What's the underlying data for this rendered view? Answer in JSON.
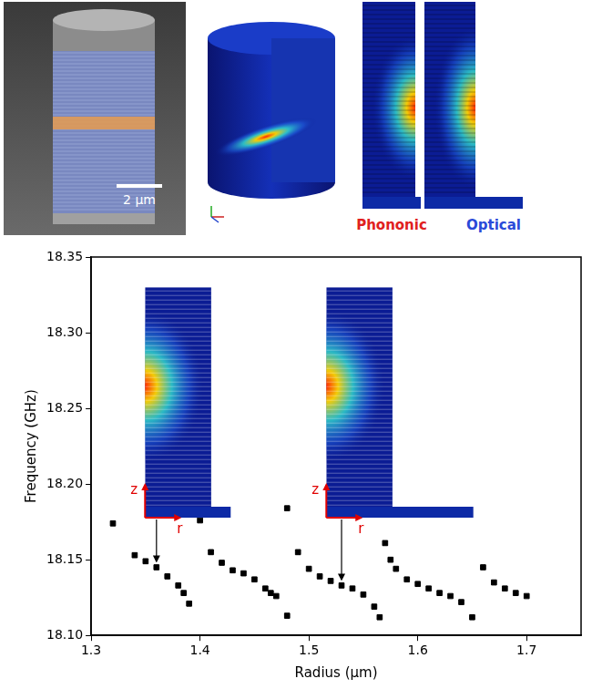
{
  "chart_data": {
    "type": "scatter",
    "x_label": "Radius (μm)",
    "y_label": "Frequency (GHz)",
    "x": [
      1.32,
      1.34,
      1.35,
      1.36,
      1.37,
      1.38,
      1.385,
      1.39,
      1.4,
      1.41,
      1.42,
      1.43,
      1.44,
      1.45,
      1.46,
      1.465,
      1.47,
      1.48,
      1.48,
      1.49,
      1.5,
      1.51,
      1.52,
      1.53,
      1.54,
      1.55,
      1.56,
      1.565,
      1.57,
      1.575,
      1.58,
      1.59,
      1.6,
      1.61,
      1.62,
      1.63,
      1.64,
      1.65,
      1.66,
      1.67,
      1.68,
      1.69,
      1.7
    ],
    "values": [
      18.174,
      18.153,
      18.149,
      18.145,
      18.139,
      18.133,
      18.128,
      18.121,
      18.176,
      18.155,
      18.148,
      18.143,
      18.141,
      18.137,
      18.131,
      18.128,
      18.126,
      18.184,
      18.113,
      18.155,
      18.144,
      18.139,
      18.136,
      18.133,
      18.131,
      18.127,
      18.119,
      18.112,
      18.161,
      18.15,
      18.144,
      18.137,
      18.134,
      18.131,
      18.128,
      18.126,
      18.122,
      18.112,
      18.145,
      18.135,
      18.131,
      18.128,
      18.126
    ],
    "color": "#000000",
    "marker": "square",
    "grid": false,
    "xlim": [
      1.3,
      1.75
    ],
    "xticks": [
      1.3,
      1.4,
      1.5,
      1.6,
      1.7
    ],
    "ylim": [
      18.1,
      18.35
    ],
    "yticks": [
      {
        "value": 18.1,
        "label": "18.10"
      },
      18.15,
      {
        "value": 18.2,
        "label": "18.20"
      },
      18.25,
      {
        "value": 18.3,
        "label": "18.30"
      },
      18.35
    ],
    "annotations": [
      {
        "axis_labels": [
          "z",
          "r"
        ],
        "x": 1.36,
        "y": 18.145
      },
      {
        "axis_labels": [
          "z",
          "r"
        ],
        "x": 1.53,
        "y": 18.133
      }
    ]
  },
  "images": {
    "scale_bar": "2 μm",
    "field_maps": [
      "Phononic",
      "Optical"
    ]
  }
}
